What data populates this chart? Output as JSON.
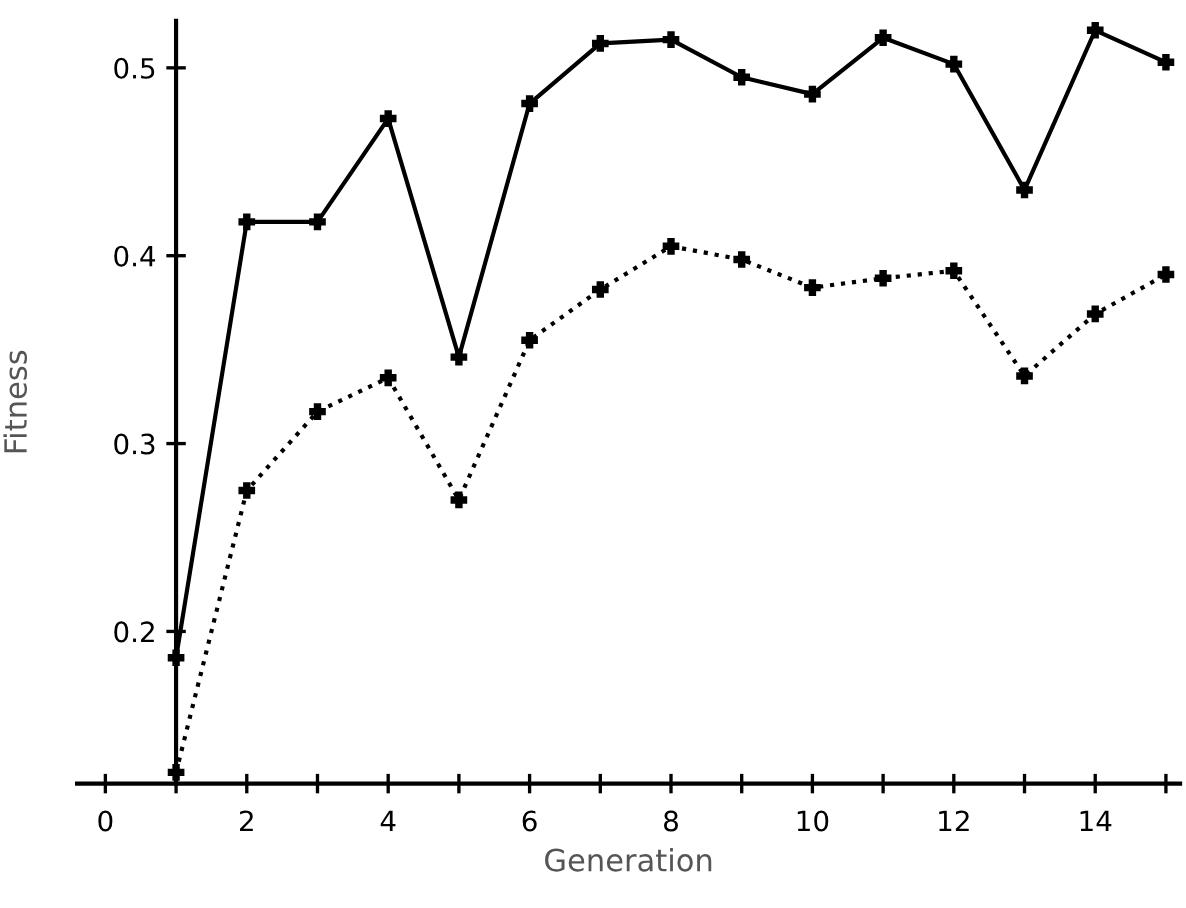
{
  "chart_data": {
    "type": "line",
    "xlabel": "Generation",
    "ylabel": "Fitness",
    "x": [
      1,
      2,
      3,
      4,
      5,
      6,
      7,
      8,
      9,
      10,
      11,
      12,
      13,
      14,
      15
    ],
    "series": [
      {
        "color": "#000000",
        "line_style": "solid",
        "values": [
          0.186,
          0.418,
          0.418,
          0.473,
          0.346,
          0.481,
          0.513,
          0.515,
          0.495,
          0.486,
          0.516,
          0.502,
          0.435,
          0.52,
          0.503
        ]
      },
      {
        "color": "#000000",
        "line_style": "dotted",
        "values": [
          0.125,
          0.275,
          0.317,
          0.335,
          0.27,
          0.355,
          0.382,
          0.405,
          0.398,
          0.383,
          0.388,
          0.392,
          0.336,
          0.369,
          0.39
        ]
      }
    ],
    "xlim": [
      -0.4,
      15.2
    ],
    "ylim": [
      0.119,
      0.525
    ],
    "xticks": [
      0,
      {
        "value": 1,
        "label": null
      },
      2,
      {
        "value": 3,
        "label": null
      },
      4,
      {
        "value": 5,
        "label": null
      },
      6,
      {
        "value": 7,
        "label": null
      },
      8,
      {
        "value": 9,
        "label": null
      },
      10,
      {
        "value": 11,
        "label": null
      },
      12,
      {
        "value": 13,
        "label": null
      },
      14,
      {
        "value": 15,
        "label": null
      }
    ],
    "yticks": [
      0.2,
      0.3,
      0.4,
      0.5
    ],
    "marker": "cross",
    "grid": false,
    "legend": false
  }
}
